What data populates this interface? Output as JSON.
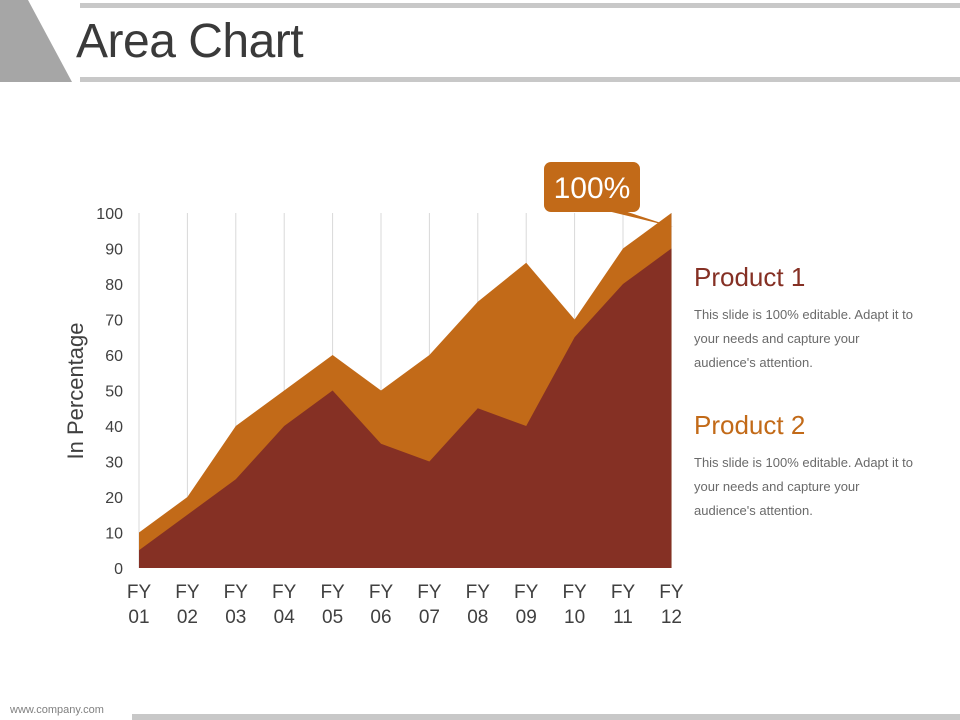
{
  "slide": {
    "title": "Area Chart",
    "footer": "www.company.com"
  },
  "colors": {
    "product_1": "#853024",
    "product_2": "#c26a18",
    "callout": "#c26a18",
    "gridline": "#d9d9d9",
    "axis_text": "#404040",
    "accent_gray": "#a6a6a6"
  },
  "legend": [
    {
      "name": "Product 1",
      "description": "This slide is 100% editable. Adapt it to your needs and capture your audience's attention."
    },
    {
      "name": "Product 2",
      "description": "This slide is 100% editable. Adapt it to your needs and capture your audience's attention."
    }
  ],
  "callout": {
    "label": "100%",
    "category_index": 11,
    "value": 100
  },
  "chart_data": {
    "type": "area",
    "categories": [
      [
        "FY",
        "01"
      ],
      [
        "FY",
        "02"
      ],
      [
        "FY",
        "03"
      ],
      [
        "FY",
        "04"
      ],
      [
        "FY",
        "05"
      ],
      [
        "FY",
        "06"
      ],
      [
        "FY",
        "07"
      ],
      [
        "FY",
        "08"
      ],
      [
        "FY",
        "09"
      ],
      [
        "FY",
        "10"
      ],
      [
        "FY",
        "11"
      ],
      [
        "FY",
        "12"
      ]
    ],
    "series": [
      {
        "name": "Product 2",
        "values": [
          10,
          20,
          40,
          50,
          60,
          50,
          60,
          75,
          86,
          70,
          90,
          100
        ]
      },
      {
        "name": "Product 1",
        "values": [
          5,
          15,
          25,
          40,
          50,
          35,
          30,
          45,
          40,
          65,
          80,
          90
        ]
      }
    ],
    "ylabel": "In Percentage",
    "ylim": [
      0,
      100
    ],
    "yticks": [
      0,
      10,
      20,
      30,
      40,
      50,
      60,
      70,
      80,
      90,
      100
    ],
    "grid": "vertical",
    "legend_placement": "right"
  }
}
